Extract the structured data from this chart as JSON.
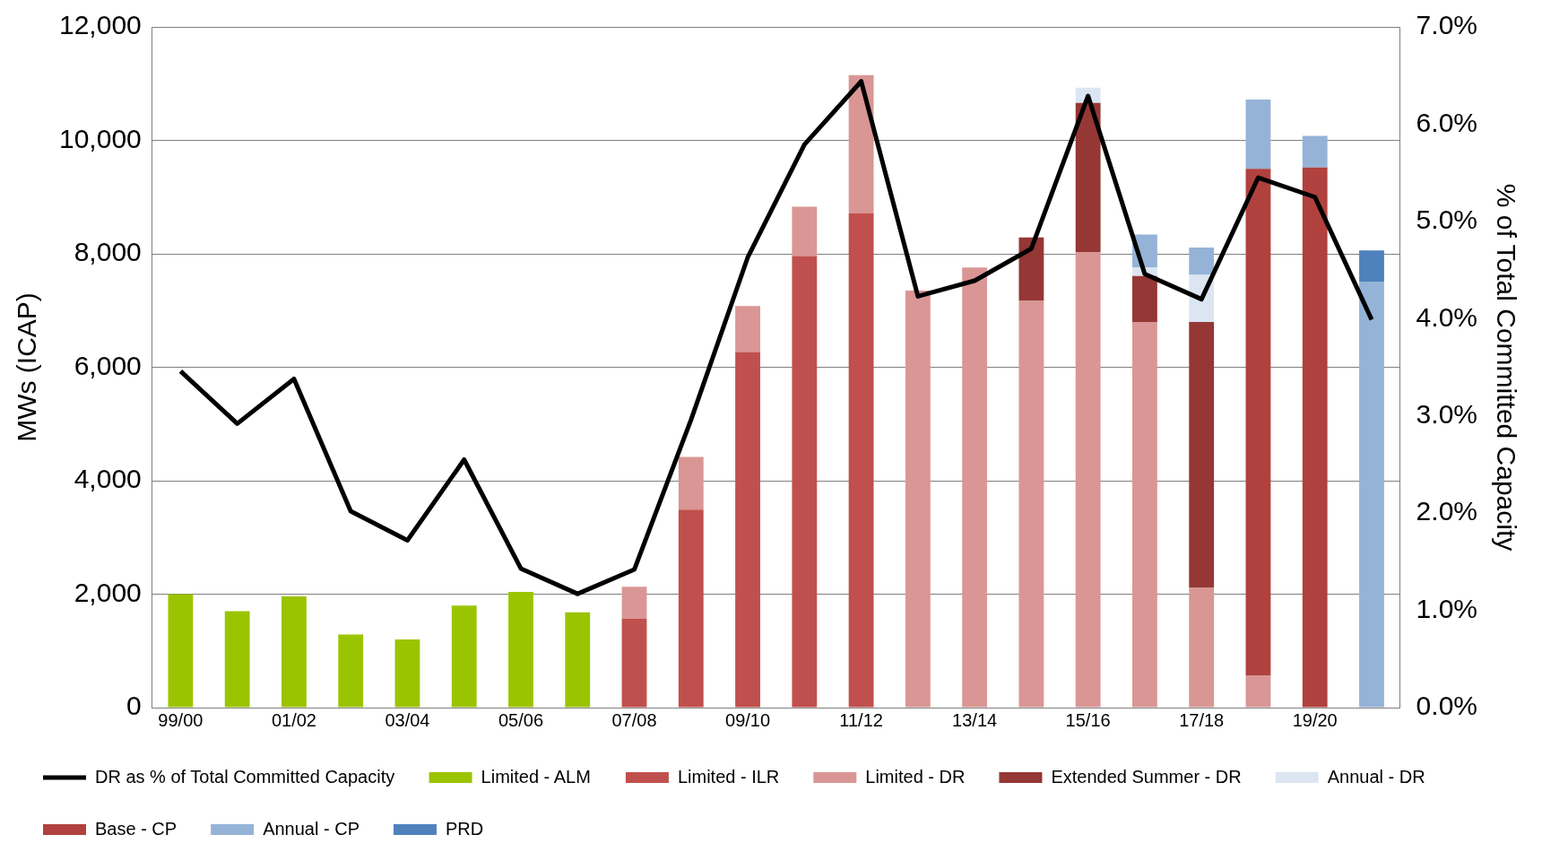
{
  "chart_data": {
    "type": "bar",
    "stacked": true,
    "ylabel": "MWs (ICAP)",
    "y2label": "% of Total Committed Capacity",
    "categories": [
      "99/00",
      null,
      "01/02",
      null,
      "03/04",
      null,
      "05/06",
      null,
      "07/08",
      null,
      "09/10",
      null,
      "11/12",
      null,
      "13/14",
      null,
      "15/16",
      null,
      "17/18",
      null,
      "19/20",
      null
    ],
    "series": [
      {
        "name": "Limited - ALM",
        "color": "#9bc400",
        "values": [
          2000,
          1700,
          1960,
          1290,
          1200,
          1800,
          2040,
          1680,
          null,
          null,
          null,
          null,
          null,
          null,
          null,
          null,
          null,
          null,
          null,
          null,
          null,
          null
        ]
      },
      {
        "name": "Limited - ILR",
        "color": "#c0504d",
        "values": [
          null,
          null,
          null,
          null,
          null,
          null,
          null,
          null,
          1570,
          3490,
          6270,
          7960,
          8710,
          null,
          null,
          null,
          null,
          null,
          null,
          null,
          null,
          null
        ]
      },
      {
        "name": "Limited - DR",
        "color": "#d99694",
        "values": [
          null,
          null,
          null,
          null,
          null,
          null,
          null,
          null,
          560,
          930,
          810,
          870,
          2440,
          7350,
          7760,
          7170,
          8030,
          6790,
          2110,
          560,
          null,
          null
        ]
      },
      {
        "name": "Extended Summer - DR",
        "color": "#953735",
        "values": [
          null,
          null,
          null,
          null,
          null,
          null,
          null,
          null,
          null,
          null,
          null,
          null,
          null,
          null,
          null,
          1120,
          2630,
          820,
          4690,
          null,
          null,
          null
        ]
      },
      {
        "name": "Annual - DR",
        "color": "#dce6f2",
        "values": [
          null,
          null,
          null,
          null,
          null,
          null,
          null,
          null,
          null,
          null,
          null,
          null,
          null,
          null,
          null,
          null,
          270,
          150,
          830,
          null,
          null,
          null
        ]
      },
      {
        "name": "Base - CP",
        "color": "#b0413e",
        "values": [
          null,
          null,
          null,
          null,
          null,
          null,
          null,
          null,
          null,
          null,
          null,
          null,
          null,
          null,
          null,
          null,
          null,
          null,
          null,
          8940,
          9520,
          null
        ]
      },
      {
        "name": "Annual - CP",
        "color": "#95b3d7",
        "values": [
          null,
          null,
          null,
          null,
          null,
          null,
          null,
          null,
          null,
          null,
          null,
          null,
          null,
          null,
          null,
          null,
          null,
          580,
          480,
          1220,
          560,
          7510
        ]
      },
      {
        "name": "PRD",
        "color": "#4f81bd",
        "values": [
          null,
          null,
          null,
          null,
          null,
          null,
          null,
          null,
          null,
          null,
          null,
          null,
          null,
          null,
          null,
          null,
          null,
          null,
          null,
          null,
          null,
          550
        ]
      },
      {
        "name": "DR as % of Total Committed Capacity",
        "type": "line",
        "axis": "y2",
        "color": "#000000",
        "values": [
          3.46,
          2.92,
          3.38,
          2.02,
          1.72,
          2.55,
          1.43,
          1.17,
          1.42,
          2.96,
          4.63,
          5.79,
          6.44,
          4.23,
          4.39,
          4.72,
          6.29,
          4.46,
          4.2,
          5.45,
          5.25,
          3.99
        ]
      }
    ],
    "ylim": [
      0,
      12000
    ],
    "yticks": [
      {
        "value": 0,
        "label": "0"
      },
      {
        "value": 2000,
        "label": "2,000"
      },
      {
        "value": 4000,
        "label": "4,000"
      },
      {
        "value": 6000,
        "label": "6,000"
      },
      {
        "value": 8000,
        "label": "8,000"
      },
      {
        "value": 10000,
        "label": "10,000"
      },
      {
        "value": 12000,
        "label": "12,000"
      }
    ],
    "y2lim": [
      0,
      7
    ],
    "y2ticks": [
      {
        "value": 0,
        "label": "0.0%"
      },
      {
        "value": 1,
        "label": "1.0%"
      },
      {
        "value": 2,
        "label": "2.0%"
      },
      {
        "value": 3,
        "label": "3.0%"
      },
      {
        "value": 4,
        "label": "4.0%"
      },
      {
        "value": 5,
        "label": "5.0%"
      },
      {
        "value": 6,
        "label": "6.0%"
      },
      {
        "value": 7,
        "label": "7.0%"
      }
    ],
    "grid": "y",
    "legend": "bottom",
    "marker": "none",
    "line_style": "solid"
  }
}
